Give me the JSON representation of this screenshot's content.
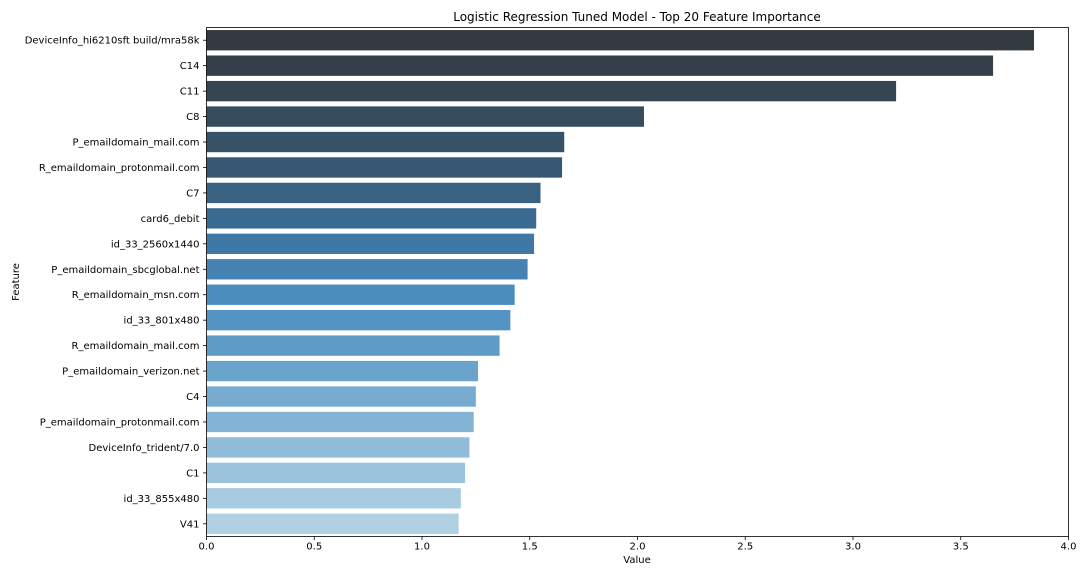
{
  "chart_data": {
    "type": "bar",
    "orientation": "horizontal",
    "title": "Logistic Regression Tuned Model - Top 20 Feature Importance",
    "xlabel": "Value",
    "ylabel": "Feature",
    "xlim": [
      0,
      4.0
    ],
    "xticks": [
      "0.0",
      "0.5",
      "1.0",
      "1.5",
      "2.0",
      "2.5",
      "3.0",
      "3.5",
      "4.0"
    ],
    "grid": false,
    "legend": "none",
    "palette": "Blues_d",
    "colors": [
      "#333a40",
      "#343f49",
      "#354552",
      "#364b5c",
      "#375167",
      "#385772",
      "#396182",
      "#3b6b93",
      "#3f77a6",
      "#4482b4",
      "#4b8dbd",
      "#5494c2",
      "#5e9cc6",
      "#6aa3cb",
      "#77acd0",
      "#84b4d5",
      "#90bcd9",
      "#9cc3de",
      "#a7cbe1",
      "#b0d0e4"
    ],
    "categories": [
      "DeviceInfo_hi6210sft build/mra58k",
      "C14",
      "C11",
      "C8",
      "P_emaildomain_mail.com",
      "R_emaildomain_protonmail.com",
      "C7",
      "card6_debit",
      "id_33_2560x1440",
      "P_emaildomain_sbcglobal.net",
      "R_emaildomain_msn.com",
      "id_33_801x480",
      "R_emaildomain_mail.com",
      "P_emaildomain_verizon.net",
      "C4",
      "P_emaildomain_protonmail.com",
      "DeviceInfo_trident/7.0",
      "C1",
      "id_33_855x480",
      "V41"
    ],
    "values": [
      3.84,
      3.65,
      3.2,
      2.03,
      1.66,
      1.65,
      1.55,
      1.53,
      1.52,
      1.49,
      1.43,
      1.41,
      1.36,
      1.26,
      1.25,
      1.24,
      1.22,
      1.2,
      1.18,
      1.17
    ]
  }
}
